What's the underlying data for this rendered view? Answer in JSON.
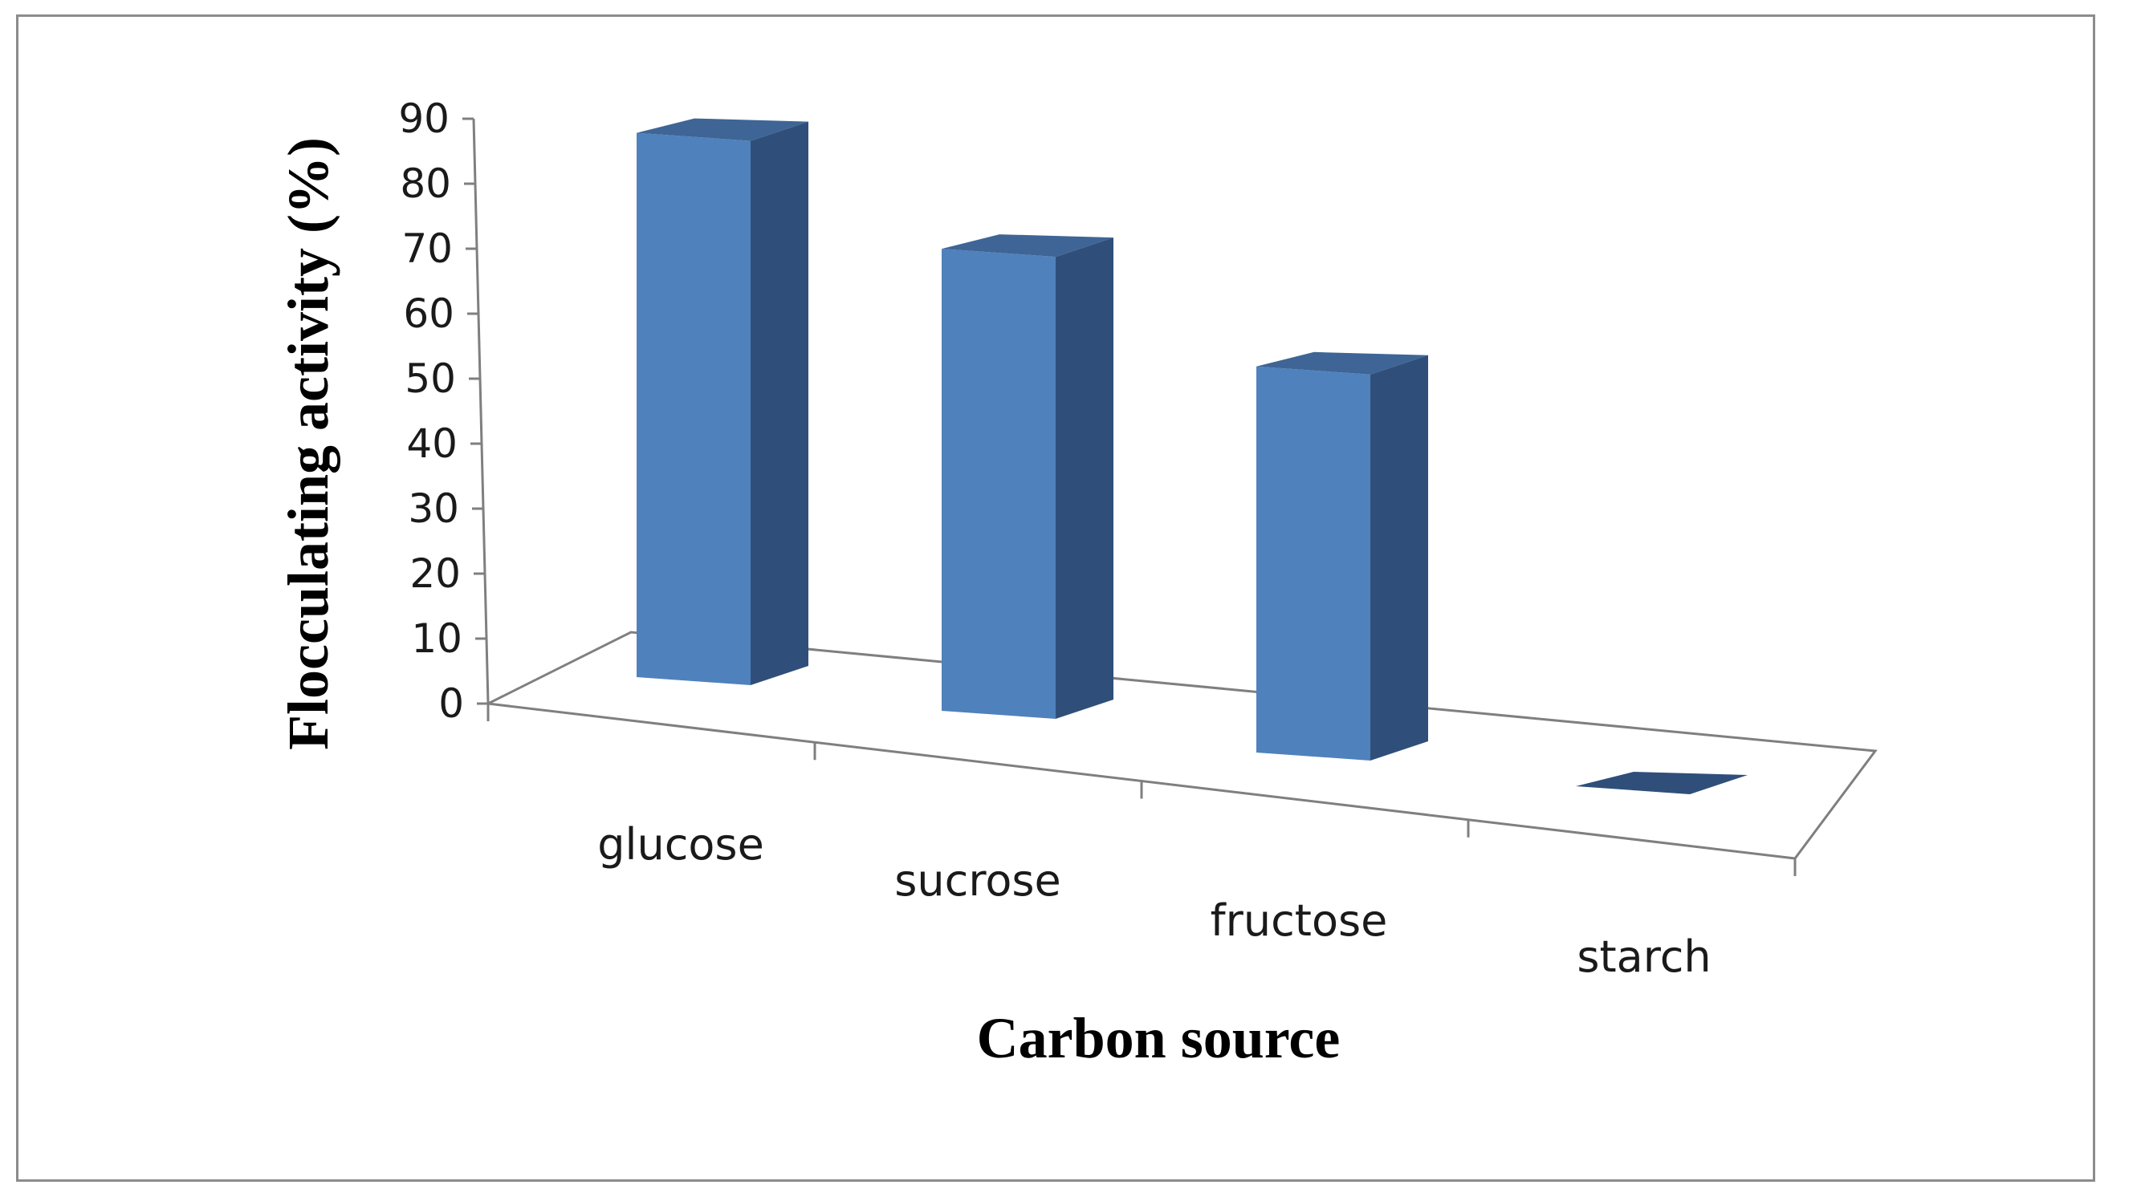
{
  "chart_data": {
    "type": "bar",
    "three_d": true,
    "title": "",
    "xlabel": "Carbon source",
    "ylabel": "Flocculating activity (%)",
    "categories": [
      "glucose",
      "sucrose",
      "fructose",
      "starch"
    ],
    "values": [
      86,
      73,
      61,
      0
    ],
    "ylim": [
      0,
      90
    ],
    "yticks": [
      "0",
      "10",
      "20",
      "30",
      "40",
      "50",
      "60",
      "70",
      "80",
      "90"
    ],
    "grid": false,
    "legend": "none",
    "colors": {
      "front": "#4f81bd",
      "side": "#2f4f7a",
      "top": "#3e6595",
      "axis": "#7f7f7f"
    }
  }
}
